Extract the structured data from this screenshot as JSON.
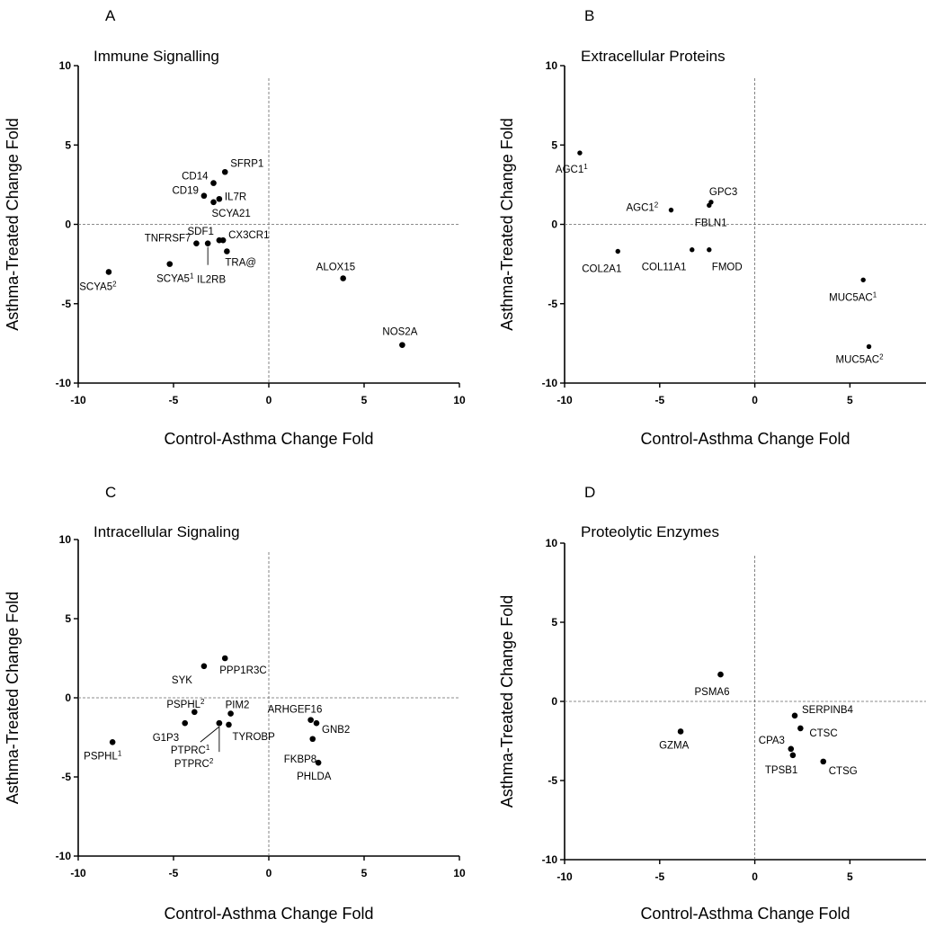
{
  "figure": {
    "x_axis_title": "Control-Asthma Change Fold",
    "y_axis_title": "Asthma-Treated Change Fold"
  },
  "chart_data": [
    {
      "type": "scatter",
      "panel": "A",
      "title": "Immune Signalling",
      "xlabel": "Control-Asthma Change Fold",
      "ylabel": "Asthma-Treated Change Fold",
      "xlim": [
        -10,
        10
      ],
      "ylim": [
        -10,
        10
      ],
      "xticks": [
        "-10",
        "-5",
        "0",
        "5",
        "10"
      ],
      "yticks": [
        "10",
        "5",
        "0",
        "-5",
        "-10"
      ],
      "reference_lines": {
        "x": 0,
        "y": 0,
        "style": "dashed"
      },
      "points": [
        {
          "label": "SFRP1",
          "x": -2.3,
          "y": 3.3
        },
        {
          "label": "CD14",
          "x": -2.9,
          "y": 2.6
        },
        {
          "label": "CD19",
          "x": -3.4,
          "y": 1.8
        },
        {
          "label": "IL7R",
          "x": -2.6,
          "y": 1.6
        },
        {
          "label": "SCYA21",
          "x": -2.9,
          "y": 1.4
        },
        {
          "label": "SDF1",
          "x": -2.6,
          "y": -1.0
        },
        {
          "label": "CX3CR1",
          "x": -2.4,
          "y": -1.0
        },
        {
          "label": "TNFRSF7",
          "x": -3.8,
          "y": -1.2
        },
        {
          "label": "IL2RB",
          "x": -3.2,
          "y": -1.2
        },
        {
          "label": "TRA@",
          "x": -2.2,
          "y": -1.7
        },
        {
          "label": "SCYA5",
          "sup": "1",
          "x": -5.2,
          "y": -2.5
        },
        {
          "label": "SCYA5",
          "sup": "2",
          "x": -8.4,
          "y": -3.0
        },
        {
          "label": "ALOX15",
          "x": 3.9,
          "y": -3.4
        },
        {
          "label": "NOS2A",
          "x": 7.0,
          "y": -7.6
        }
      ]
    },
    {
      "type": "scatter",
      "panel": "B",
      "title": "Extracellular Proteins",
      "xlabel": "Control-Asthma Change Fold",
      "ylabel": "Asthma-Treated Change Fold",
      "xlim": [
        -10,
        9
      ],
      "ylim": [
        -10,
        10
      ],
      "xticks": [
        "-10",
        "-5",
        "0",
        "5"
      ],
      "yticks": [
        "10",
        "5",
        "0",
        "-5",
        "-10"
      ],
      "reference_lines": {
        "x": 0,
        "y": 0,
        "style": "dashed"
      },
      "points": [
        {
          "label": "AGC1",
          "sup": "1",
          "x": -9.2,
          "y": 4.5
        },
        {
          "label": "AGC1",
          "sup": "2",
          "x": -4.4,
          "y": 0.9
        },
        {
          "label": "GPC3",
          "x": -2.3,
          "y": 1.4
        },
        {
          "label": "FBLN1",
          "x": -2.4,
          "y": 1.2
        },
        {
          "label": "COL2A1",
          "x": -7.2,
          "y": -1.7
        },
        {
          "label": "COL11A1",
          "x": -3.3,
          "y": -1.6
        },
        {
          "label": "FMOD",
          "x": -2.4,
          "y": -1.6
        },
        {
          "label": "MUC5AC",
          "sup": "1",
          "x": 5.7,
          "y": -3.5
        },
        {
          "label": "MUC5AC",
          "sup": "2",
          "x": 6.0,
          "y": -7.7
        }
      ]
    },
    {
      "type": "scatter",
      "panel": "C",
      "title": "Intracellular Signaling",
      "xlabel": "Control-Asthma Change Fold",
      "ylabel": "Asthma-Treated Change Fold",
      "xlim": [
        -10,
        10
      ],
      "ylim": [
        -10,
        10
      ],
      "xticks": [
        "-10",
        "-5",
        "0",
        "5",
        "10"
      ],
      "yticks": [
        "10",
        "5",
        "0",
        "-5",
        "-10"
      ],
      "reference_lines": {
        "x": 0,
        "y": 0,
        "style": "dashed"
      },
      "points": [
        {
          "label": "PPP1R3C",
          "x": -2.3,
          "y": 2.5
        },
        {
          "label": "SYK",
          "x": -3.4,
          "y": 2.0
        },
        {
          "label": "PSPHL",
          "sup": "2",
          "x": -3.9,
          "y": -0.9
        },
        {
          "label": "PIM2",
          "x": -2.0,
          "y": -1.0
        },
        {
          "label": "G1P3",
          "x": -4.4,
          "y": -1.6
        },
        {
          "label": "PTPRC",
          "sup": "1",
          "x": -2.6,
          "y": -1.6
        },
        {
          "label": "TYROBP",
          "x": -2.1,
          "y": -1.7
        },
        {
          "label": "PTPRC",
          "sup": "2",
          "x": -2.6,
          "y": -1.6
        },
        {
          "label": "ARHGEF16",
          "x": 2.2,
          "y": -1.4
        },
        {
          "label": "GNB2",
          "x": 2.5,
          "y": -1.6
        },
        {
          "label": "FKBP8",
          "x": 2.3,
          "y": -2.6
        },
        {
          "label": "PHLDA",
          "x": 2.6,
          "y": -4.1
        },
        {
          "label": "PSPHL",
          "sup": "1",
          "x": -8.2,
          "y": -2.8
        }
      ]
    },
    {
      "type": "scatter",
      "panel": "D",
      "title": "Proteolytic Enzymes",
      "xlabel": "Control-Asthma Change Fold",
      "ylabel": "Asthma-Treated Change Fold",
      "xlim": [
        -10,
        9
      ],
      "ylim": [
        -10,
        10
      ],
      "xticks": [
        "-10",
        "-5",
        "0",
        "5"
      ],
      "yticks": [
        "10",
        "5",
        "0",
        "-5",
        "-10"
      ],
      "reference_lines": {
        "x": 0,
        "y": 0,
        "style": "dashed"
      },
      "points": [
        {
          "label": "PSMA6",
          "x": -1.8,
          "y": 1.7
        },
        {
          "label": "GZMA",
          "x": -3.9,
          "y": -1.9
        },
        {
          "label": "SERPINB4",
          "x": 2.1,
          "y": -0.9
        },
        {
          "label": "CTSC",
          "x": 2.4,
          "y": -1.7
        },
        {
          "label": "CPA3",
          "x": 1.9,
          "y": -3.0
        },
        {
          "label": "TPSB1",
          "x": 2.0,
          "y": -3.4
        },
        {
          "label": "CTSG",
          "x": 3.6,
          "y": -3.8
        }
      ]
    }
  ]
}
